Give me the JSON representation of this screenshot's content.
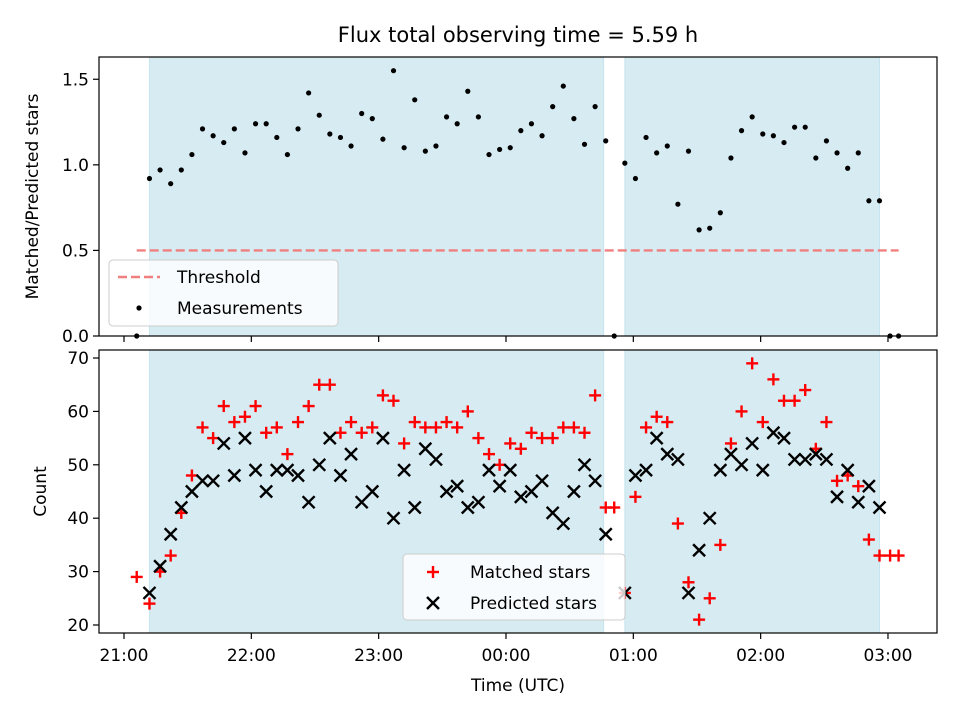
{
  "chart_data": [
    {
      "type": "scatter",
      "title": "Flux total observing time = 5.59 h",
      "xlabel": "",
      "ylabel": "Matched/Predicted stars",
      "ylim": [
        0,
        1.63
      ],
      "yticks": [
        "0.0",
        "0.5",
        "1.0",
        "1.5"
      ],
      "shaded_spans": [
        [
          "21:12",
          "00:46"
        ],
        [
          "00:56",
          "02:56"
        ]
      ],
      "threshold": {
        "name": "Threshold",
        "value": 0.5,
        "color": "#f08080"
      },
      "series": [
        {
          "name": "Measurements",
          "color": "#000000",
          "points": [
            [
              "21:06",
              0.0
            ],
            [
              "21:12",
              0.92
            ],
            [
              "21:17",
              0.97
            ],
            [
              "21:22",
              0.89
            ],
            [
              "21:27",
              0.97
            ],
            [
              "21:32",
              1.06
            ],
            [
              "21:37",
              1.21
            ],
            [
              "21:42",
              1.17
            ],
            [
              "21:47",
              1.13
            ],
            [
              "21:52",
              1.21
            ],
            [
              "21:57",
              1.07
            ],
            [
              "22:02",
              1.24
            ],
            [
              "22:07",
              1.24
            ],
            [
              "22:12",
              1.16
            ],
            [
              "22:17",
              1.06
            ],
            [
              "22:22",
              1.21
            ],
            [
              "22:27",
              1.42
            ],
            [
              "22:32",
              1.29
            ],
            [
              "22:37",
              1.18
            ],
            [
              "22:42",
              1.16
            ],
            [
              "22:47",
              1.11
            ],
            [
              "22:52",
              1.3
            ],
            [
              "22:57",
              1.27
            ],
            [
              "23:02",
              1.15
            ],
            [
              "23:07",
              1.55
            ],
            [
              "23:12",
              1.1
            ],
            [
              "23:17",
              1.38
            ],
            [
              "23:22",
              1.08
            ],
            [
              "23:27",
              1.11
            ],
            [
              "23:32",
              1.28
            ],
            [
              "23:37",
              1.24
            ],
            [
              "23:42",
              1.43
            ],
            [
              "23:47",
              1.28
            ],
            [
              "23:52",
              1.06
            ],
            [
              "23:57",
              1.09
            ],
            [
              "00:02",
              1.1
            ],
            [
              "00:07",
              1.2
            ],
            [
              "00:12",
              1.24
            ],
            [
              "00:17",
              1.17
            ],
            [
              "00:22",
              1.34
            ],
            [
              "00:27",
              1.46
            ],
            [
              "00:32",
              1.27
            ],
            [
              "00:37",
              1.12
            ],
            [
              "00:42",
              1.34
            ],
            [
              "00:47",
              1.14
            ],
            [
              "00:51",
              0.0
            ],
            [
              "00:56",
              1.01
            ],
            [
              "01:01",
              0.92
            ],
            [
              "01:06",
              1.16
            ],
            [
              "01:11",
              1.07
            ],
            [
              "01:16",
              1.11
            ],
            [
              "01:21",
              0.77
            ],
            [
              "01:26",
              1.08
            ],
            [
              "01:31",
              0.62
            ],
            [
              "01:36",
              0.63
            ],
            [
              "01:41",
              0.72
            ],
            [
              "01:46",
              1.04
            ],
            [
              "01:51",
              1.2
            ],
            [
              "01:56",
              1.28
            ],
            [
              "02:01",
              1.18
            ],
            [
              "02:06",
              1.17
            ],
            [
              "02:11",
              1.13
            ],
            [
              "02:16",
              1.22
            ],
            [
              "02:21",
              1.22
            ],
            [
              "02:26",
              1.04
            ],
            [
              "02:31",
              1.14
            ],
            [
              "02:36",
              1.07
            ],
            [
              "02:41",
              0.98
            ],
            [
              "02:46",
              1.07
            ],
            [
              "02:51",
              0.79
            ],
            [
              "02:56",
              0.79
            ],
            [
              "03:01",
              0.0
            ],
            [
              "03:05",
              0.0
            ]
          ]
        }
      ]
    },
    {
      "type": "scatter",
      "title": "",
      "xlabel": "Time (UTC)",
      "ylabel": "Count",
      "ylim": [
        18.5,
        71.5
      ],
      "yticks": [
        "20",
        "30",
        "40",
        "50",
        "60",
        "70"
      ],
      "xticks": [
        "21:00",
        "22:00",
        "23:00",
        "00:00",
        "01:00",
        "02:00",
        "03:00"
      ],
      "shaded_spans": [
        [
          "21:12",
          "00:46"
        ],
        [
          "00:56",
          "02:56"
        ]
      ],
      "series": [
        {
          "name": "Matched stars",
          "marker": "+",
          "color": "#ff0000",
          "points": [
            [
              "21:06",
              29
            ],
            [
              "21:12",
              24
            ],
            [
              "21:17",
              30
            ],
            [
              "21:22",
              33
            ],
            [
              "21:27",
              41
            ],
            [
              "21:32",
              48
            ],
            [
              "21:37",
              57
            ],
            [
              "21:42",
              55
            ],
            [
              "21:47",
              61
            ],
            [
              "21:52",
              58
            ],
            [
              "21:57",
              59
            ],
            [
              "22:02",
              61
            ],
            [
              "22:07",
              56
            ],
            [
              "22:12",
              57
            ],
            [
              "22:17",
              52
            ],
            [
              "22:22",
              58
            ],
            [
              "22:27",
              61
            ],
            [
              "22:32",
              65
            ],
            [
              "22:37",
              65
            ],
            [
              "22:42",
              56
            ],
            [
              "22:47",
              58
            ],
            [
              "22:52",
              56
            ],
            [
              "22:57",
              57
            ],
            [
              "23:02",
              63
            ],
            [
              "23:07",
              62
            ],
            [
              "23:12",
              54
            ],
            [
              "23:17",
              58
            ],
            [
              "23:22",
              57
            ],
            [
              "23:27",
              57
            ],
            [
              "23:32",
              58
            ],
            [
              "23:37",
              57
            ],
            [
              "23:42",
              60
            ],
            [
              "23:47",
              55
            ],
            [
              "23:52",
              52
            ],
            [
              "23:57",
              50
            ],
            [
              "00:02",
              54
            ],
            [
              "00:07",
              53
            ],
            [
              "00:12",
              56
            ],
            [
              "00:17",
              55
            ],
            [
              "00:22",
              55
            ],
            [
              "00:27",
              57
            ],
            [
              "00:32",
              57
            ],
            [
              "00:37",
              56
            ],
            [
              "00:42",
              63
            ],
            [
              "00:47",
              42
            ],
            [
              "00:51",
              42
            ],
            [
              "00:56",
              26
            ],
            [
              "01:01",
              44
            ],
            [
              "01:06",
              57
            ],
            [
              "01:11",
              59
            ],
            [
              "01:16",
              58
            ],
            [
              "01:21",
              39
            ],
            [
              "01:26",
              28
            ],
            [
              "01:31",
              21
            ],
            [
              "01:36",
              25
            ],
            [
              "01:41",
              35
            ],
            [
              "01:46",
              54
            ],
            [
              "01:51",
              60
            ],
            [
              "01:56",
              69
            ],
            [
              "02:01",
              58
            ],
            [
              "02:06",
              66
            ],
            [
              "02:11",
              62
            ],
            [
              "02:16",
              62
            ],
            [
              "02:21",
              64
            ],
            [
              "02:26",
              53
            ],
            [
              "02:31",
              58
            ],
            [
              "02:36",
              47
            ],
            [
              "02:41",
              48
            ],
            [
              "02:46",
              46
            ],
            [
              "02:51",
              36
            ],
            [
              "02:56",
              33
            ],
            [
              "03:01",
              33
            ],
            [
              "03:05",
              33
            ]
          ]
        },
        {
          "name": "Predicted stars",
          "marker": "x",
          "color": "#000000",
          "points": [
            [
              "21:12",
              26
            ],
            [
              "21:17",
              31
            ],
            [
              "21:22",
              37
            ],
            [
              "21:27",
              42
            ],
            [
              "21:32",
              45
            ],
            [
              "21:37",
              47
            ],
            [
              "21:42",
              47
            ],
            [
              "21:47",
              54
            ],
            [
              "21:52",
              48
            ],
            [
              "21:57",
              55
            ],
            [
              "22:02",
              49
            ],
            [
              "22:07",
              45
            ],
            [
              "22:12",
              49
            ],
            [
              "22:17",
              49
            ],
            [
              "22:22",
              48
            ],
            [
              "22:27",
              43
            ],
            [
              "22:32",
              50
            ],
            [
              "22:37",
              55
            ],
            [
              "22:42",
              48
            ],
            [
              "22:47",
              52
            ],
            [
              "22:52",
              43
            ],
            [
              "22:57",
              45
            ],
            [
              "23:02",
              55
            ],
            [
              "23:07",
              40
            ],
            [
              "23:12",
              49
            ],
            [
              "23:17",
              42
            ],
            [
              "23:22",
              53
            ],
            [
              "23:27",
              51
            ],
            [
              "23:32",
              45
            ],
            [
              "23:37",
              46
            ],
            [
              "23:42",
              42
            ],
            [
              "23:47",
              43
            ],
            [
              "23:52",
              49
            ],
            [
              "23:57",
              46
            ],
            [
              "00:02",
              49
            ],
            [
              "00:07",
              44
            ],
            [
              "00:12",
              45
            ],
            [
              "00:17",
              47
            ],
            [
              "00:22",
              41
            ],
            [
              "00:27",
              39
            ],
            [
              "00:32",
              45
            ],
            [
              "00:37",
              50
            ],
            [
              "00:42",
              47
            ],
            [
              "00:47",
              37
            ],
            [
              "00:56",
              26
            ],
            [
              "01:01",
              48
            ],
            [
              "01:06",
              49
            ],
            [
              "01:11",
              55
            ],
            [
              "01:16",
              52
            ],
            [
              "01:21",
              51
            ],
            [
              "01:26",
              26
            ],
            [
              "01:31",
              34
            ],
            [
              "01:36",
              40
            ],
            [
              "01:41",
              49
            ],
            [
              "01:46",
              52
            ],
            [
              "01:51",
              50
            ],
            [
              "01:56",
              54
            ],
            [
              "02:01",
              49
            ],
            [
              "02:06",
              56
            ],
            [
              "02:11",
              55
            ],
            [
              "02:16",
              51
            ],
            [
              "02:21",
              51
            ],
            [
              "02:26",
              52
            ],
            [
              "02:31",
              51
            ],
            [
              "02:36",
              44
            ],
            [
              "02:41",
              49
            ],
            [
              "02:46",
              43
            ],
            [
              "02:51",
              46
            ],
            [
              "02:56",
              42
            ]
          ]
        }
      ]
    }
  ]
}
